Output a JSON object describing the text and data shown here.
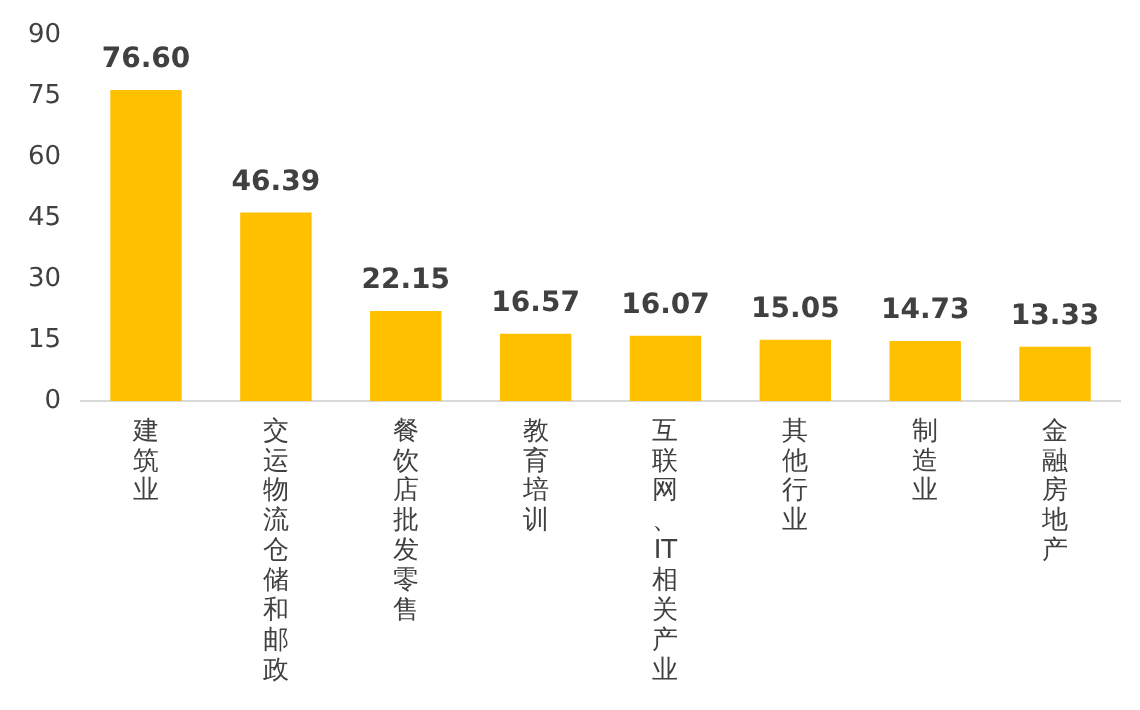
{
  "chart_data": {
    "type": "bar",
    "categories": [
      "建筑业",
      "交运物流仓储和邮政",
      "餐饮店批发零售",
      "教育培训",
      "互联网、IT相关产业",
      "其他行业",
      "制造业",
      "金融房地产"
    ],
    "values": [
      76.6,
      46.39,
      22.15,
      16.57,
      16.07,
      15.05,
      14.73,
      13.33
    ],
    "color": "#ffc000",
    "ylim": [
      0,
      90
    ],
    "yticks": [
      0,
      15,
      30,
      45,
      60,
      75,
      90
    ],
    "grid": false,
    "legend": false,
    "data_labels": true,
    "value_labels": [
      "76.60",
      "46.39",
      "22.15",
      "16.57",
      "16.07",
      "15.05",
      "14.73",
      "13.33"
    ]
  }
}
